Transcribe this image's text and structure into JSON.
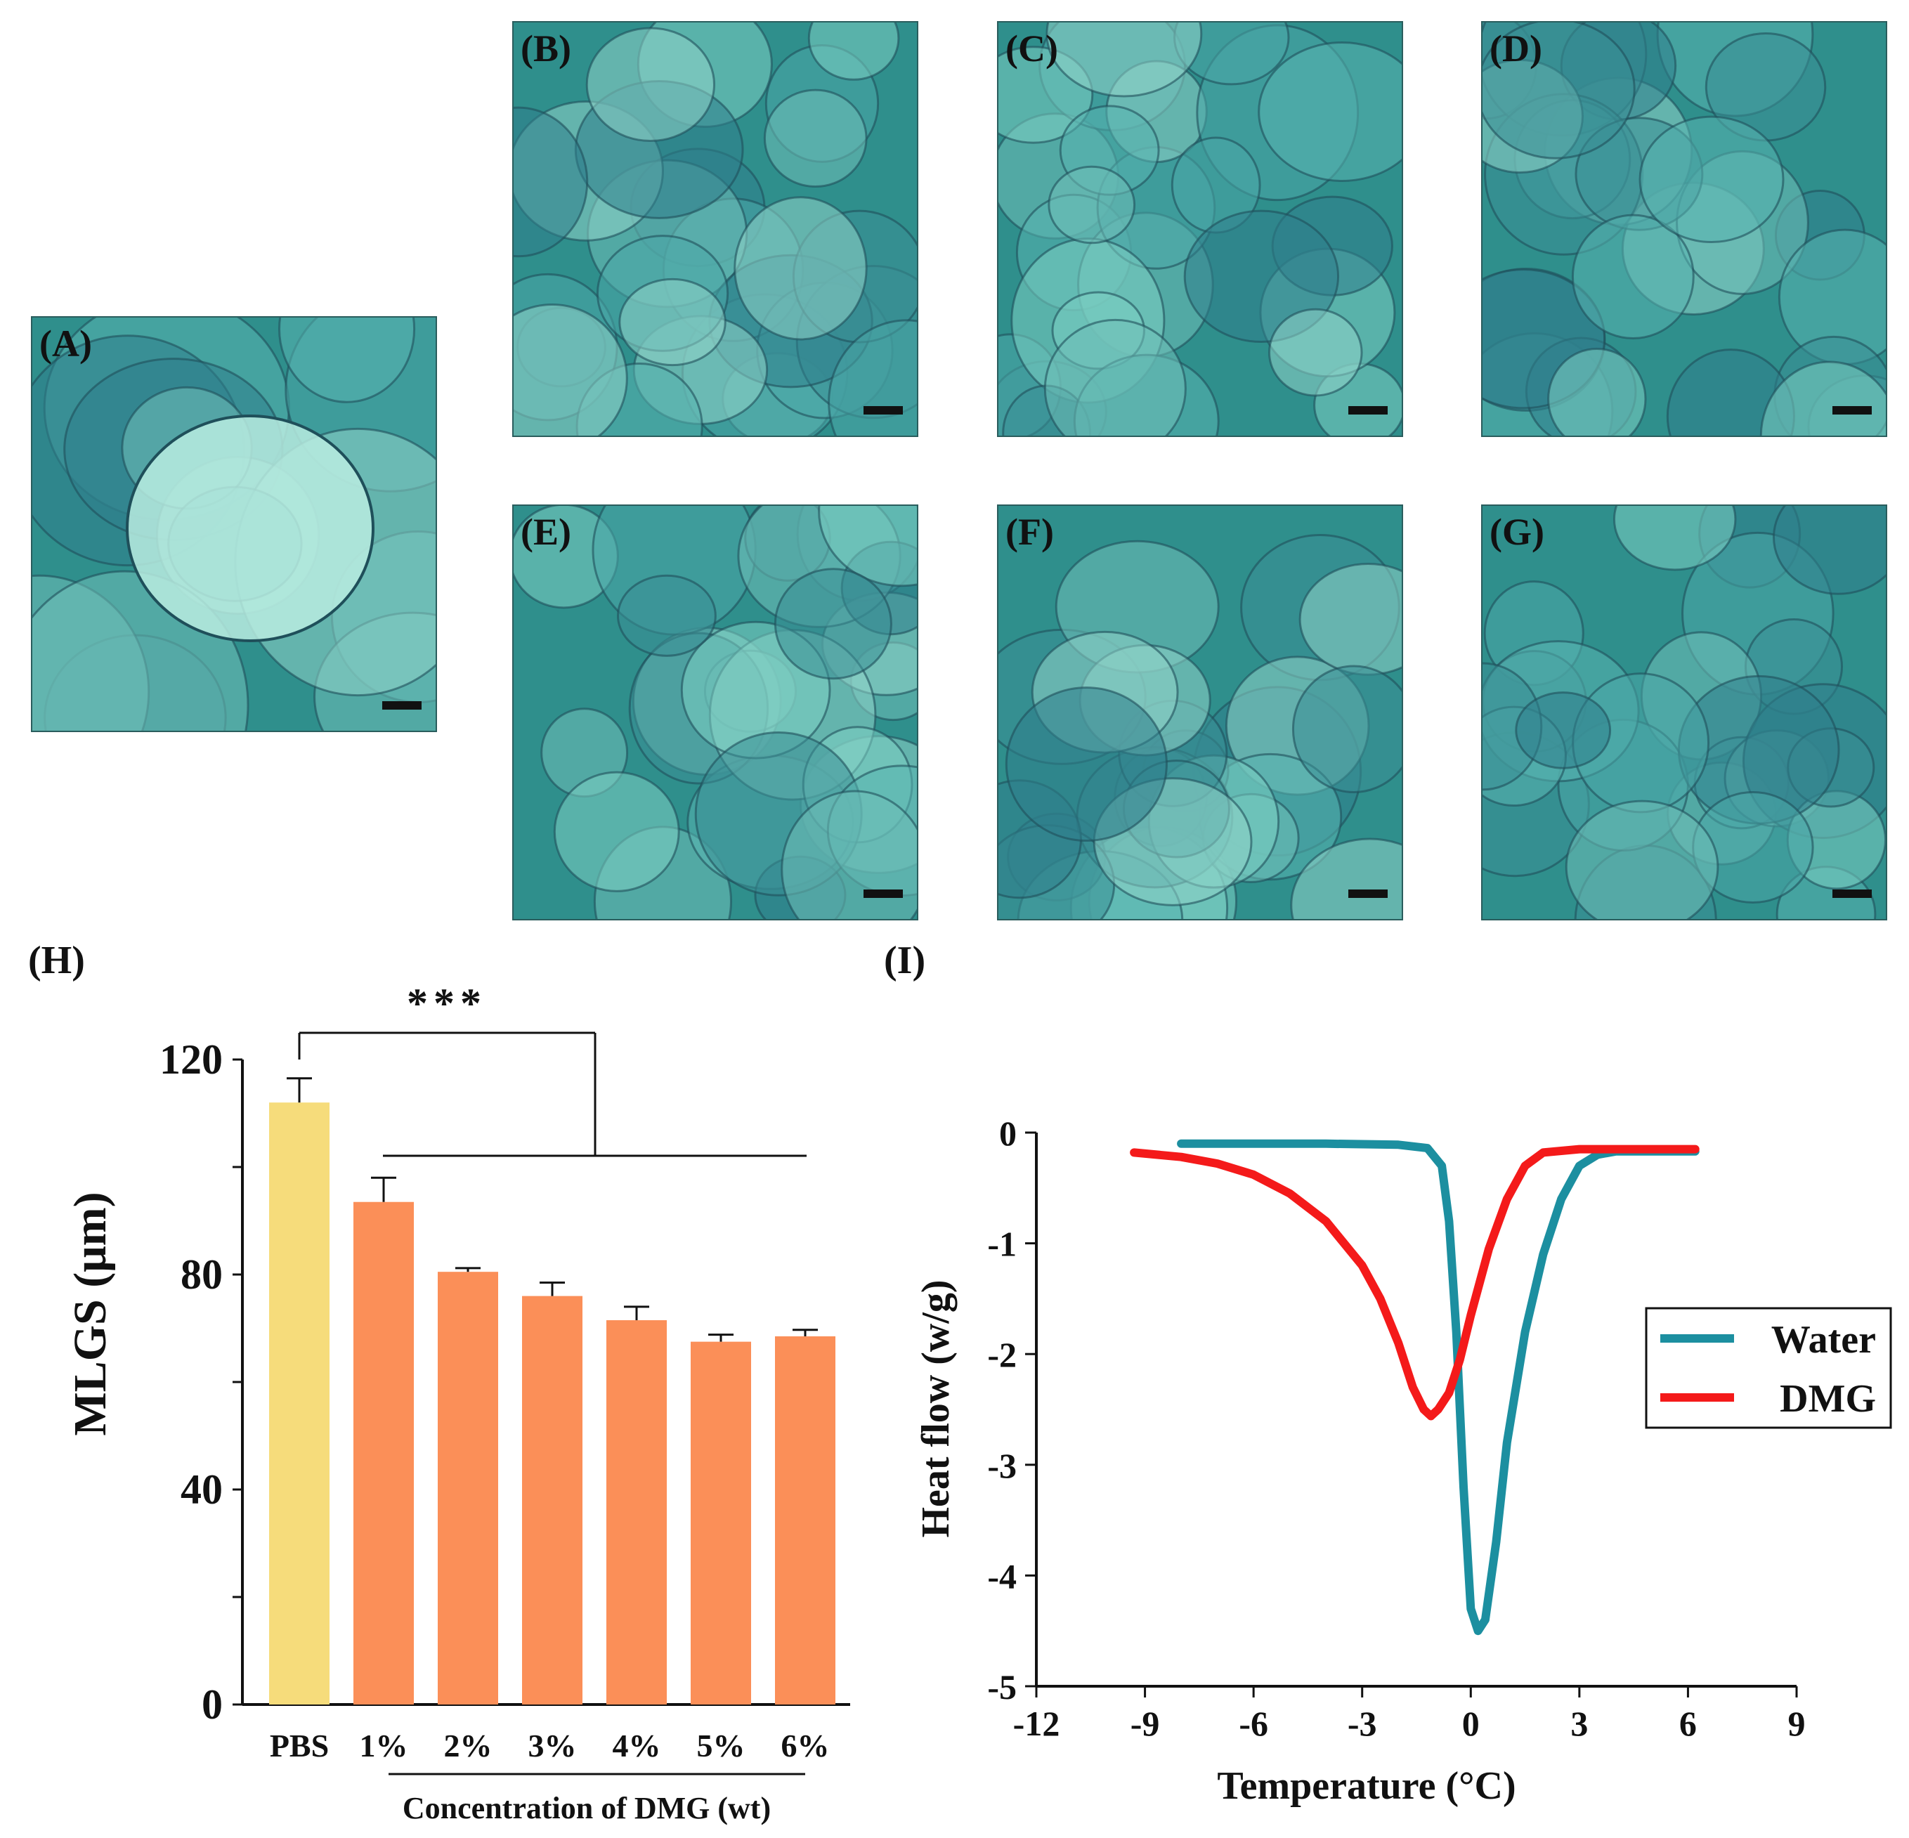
{
  "colors": {
    "pbs_bar": "#f6dc7b",
    "dmg_bars": "#fb8f58",
    "water_line": "#1c8fa0",
    "dmg_line": "#f41a1a",
    "micrograph_base": "#2f8f8c"
  },
  "micrographs": [
    {
      "id": "A",
      "label": "(A)"
    },
    {
      "id": "B",
      "label": "(B)"
    },
    {
      "id": "C",
      "label": "(C)"
    },
    {
      "id": "D",
      "label": "(D)"
    },
    {
      "id": "E",
      "label": "(E)"
    },
    {
      "id": "F",
      "label": "(F)"
    },
    {
      "id": "G",
      "label": "(G)"
    }
  ],
  "panel_h_label": "(H)",
  "panel_i_label": "(I)",
  "chart_data": [
    {
      "type": "bar",
      "ylabel": "MLGS (μm)",
      "xlabel": "Concentration of DMG (wt)",
      "categories": [
        "PBS",
        "1%",
        "2%",
        "3%",
        "4%",
        "5%",
        "6%"
      ],
      "values": [
        112,
        93.5,
        80.5,
        76,
        71.5,
        67.5,
        68.5
      ],
      "errors": [
        4.5,
        4.5,
        0.7,
        2.5,
        2.5,
        1.3,
        1.2
      ],
      "ylim": [
        0,
        120
      ],
      "yticks": [
        "0",
        "40",
        "80",
        "120"
      ],
      "significance": "***"
    },
    {
      "type": "line",
      "xlabel": "Temperature (°C)",
      "ylabel": "Heat flow (w/g)",
      "xlim": [
        -12,
        9
      ],
      "ylim": [
        -5,
        0
      ],
      "xticks": [
        "-12",
        "-9",
        "-6",
        "-3",
        "0",
        "3",
        "6",
        "9"
      ],
      "yticks": [
        "0",
        "-1",
        "-2",
        "-3",
        "-4",
        "-5"
      ],
      "series": [
        {
          "name": "Water",
          "x": [
            -8,
            -6,
            -4,
            -2,
            -1.2,
            -0.8,
            -0.6,
            -0.4,
            -0.2,
            0,
            0.2,
            0.4,
            0.7,
            1.0,
            1.5,
            2,
            2.5,
            3,
            3.5,
            4,
            5,
            6.2
          ],
          "y": [
            -0.1,
            -0.1,
            -0.1,
            -0.11,
            -0.14,
            -0.3,
            -0.8,
            -1.8,
            -3.2,
            -4.3,
            -4.5,
            -4.4,
            -3.7,
            -2.8,
            -1.8,
            -1.1,
            -0.6,
            -0.3,
            -0.2,
            -0.17,
            -0.17,
            -0.17
          ]
        },
        {
          "name": "DMG",
          "x": [
            -9.3,
            -8,
            -7,
            -6,
            -5,
            -4,
            -3,
            -2.5,
            -2,
            -1.6,
            -1.3,
            -1.1,
            -0.9,
            -0.6,
            -0.3,
            0,
            0.5,
            1,
            1.5,
            2,
            3,
            4,
            5,
            6.2
          ],
          "y": [
            -0.18,
            -0.22,
            -0.28,
            -0.38,
            -0.55,
            -0.8,
            -1.2,
            -1.5,
            -1.9,
            -2.3,
            -2.5,
            -2.56,
            -2.5,
            -2.35,
            -2.05,
            -1.65,
            -1.05,
            -0.6,
            -0.3,
            -0.18,
            -0.15,
            -0.15,
            -0.15,
            -0.15
          ]
        }
      ],
      "legend": "right"
    }
  ]
}
